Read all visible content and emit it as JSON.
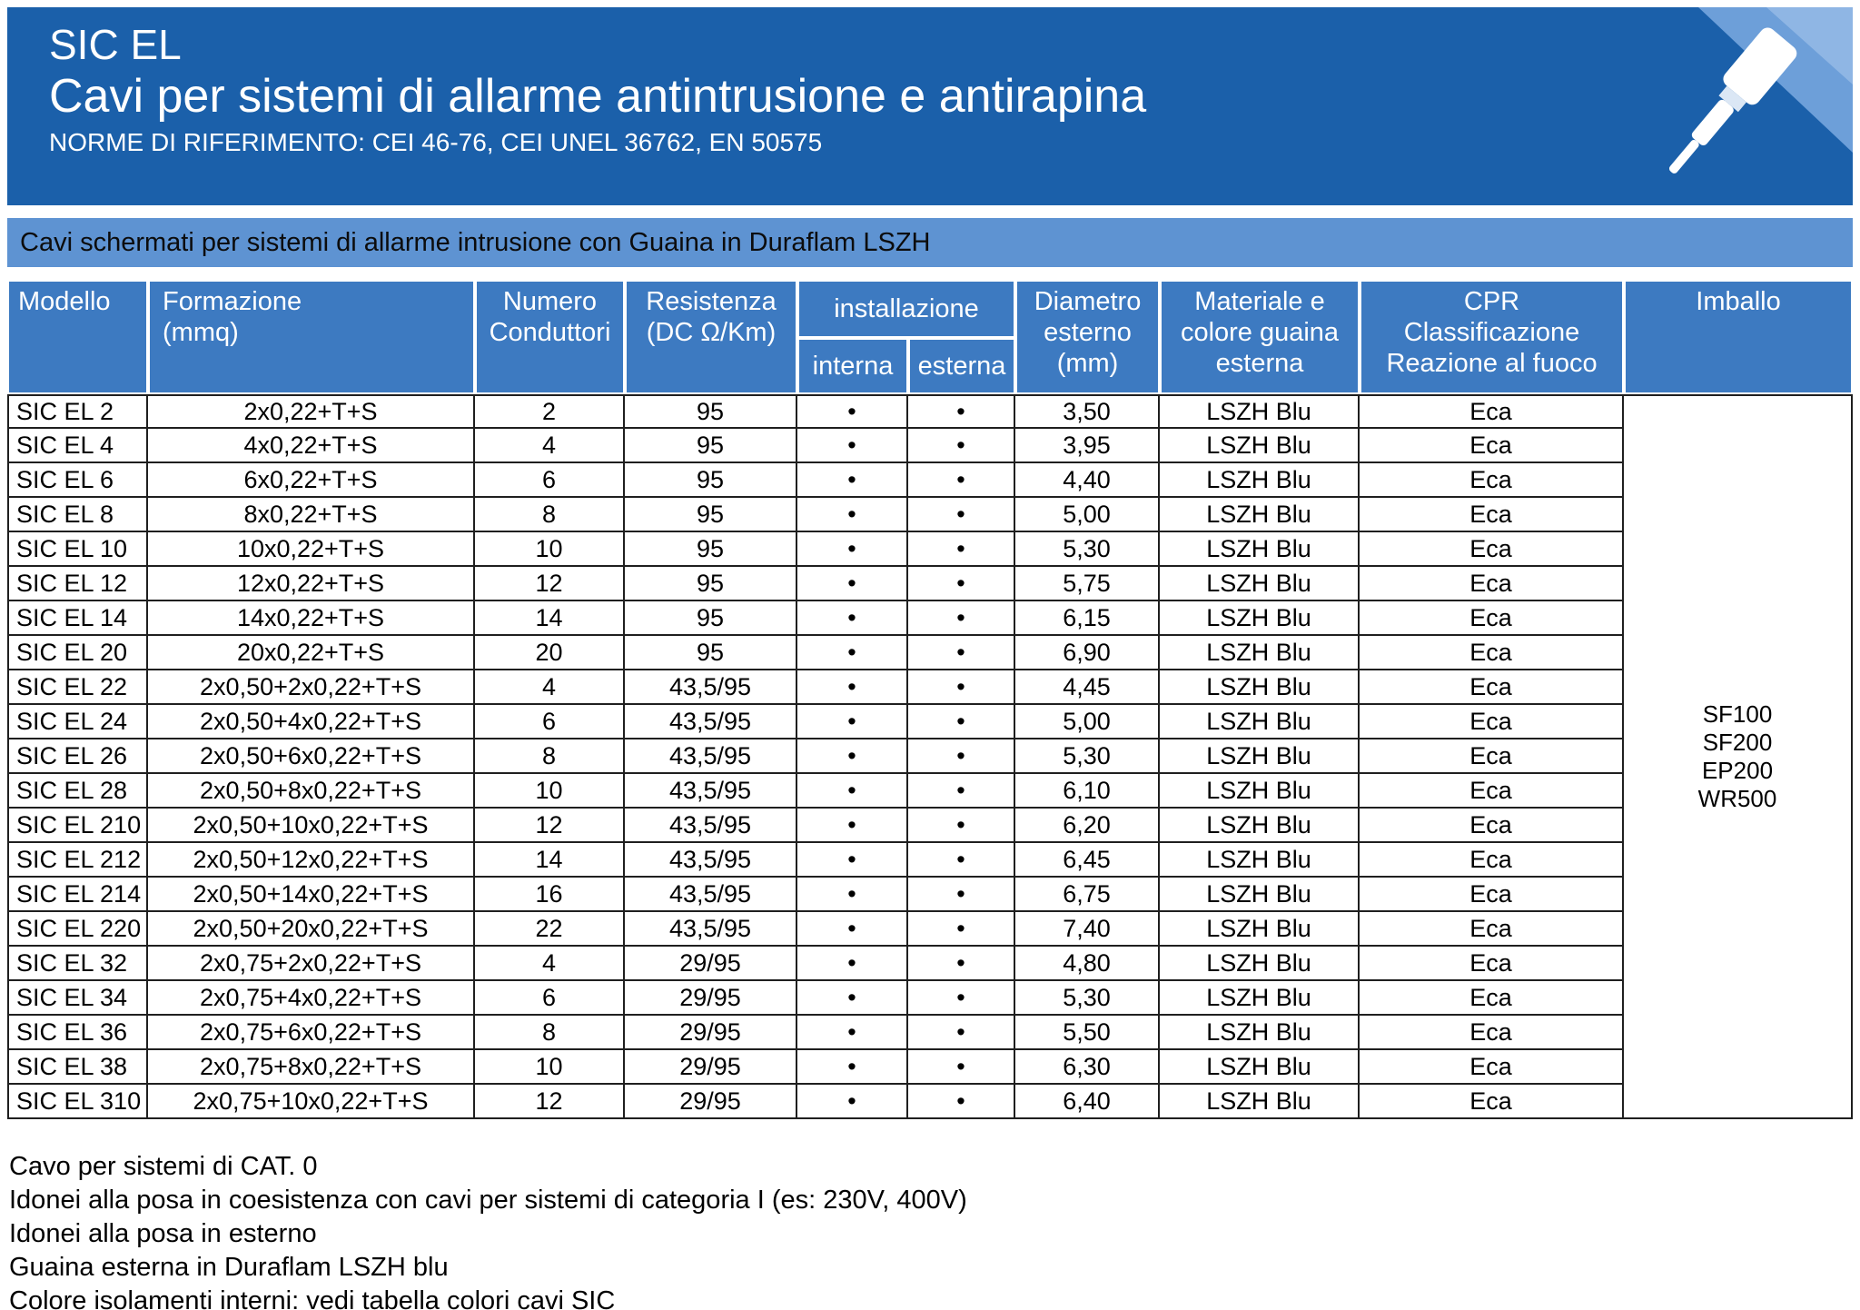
{
  "banner": {
    "title": "SIC EL",
    "subtitle": "Cavi per sistemi di allarme antintrusione e antirapina",
    "norms": "NORME DI RIFERIMENTO: CEI 46-76, CEI UNEL 36762, EN 50575"
  },
  "section": {
    "text": "Cavi schermati per sistemi di allarme intrusione con Guaina in Duraflam LSZH"
  },
  "colors": {
    "banner_blue": "#1b60aa",
    "band_blue": "#5e93d2",
    "header_cell_blue": "#3d7ac1",
    "art_light_blue": "#6d9fd9",
    "border_dark": "#1f1f1f"
  },
  "table": {
    "headers": {
      "modello": "Modello",
      "formazione": "Formazione\n(mmq)",
      "conduttori": "Numero\nConduttori",
      "resistenza": "Resistenza\n(DC Ω/Km)",
      "installazione": "installazione",
      "interna": "interna",
      "esterna": "esterna",
      "diametro": "Diametro\nesterno\n(mm)",
      "materiale": "Materiale e\ncolore guaina\nesterna",
      "cpr": "CPR\nClassificazione\nReazione al fuoco",
      "imballo": "Imballo"
    },
    "rows": [
      {
        "model": "SIC EL 2",
        "formation": "2x0,22+T+S",
        "conductors": "2",
        "resistance": "95",
        "interna": "•",
        "esterna": "•",
        "diameter": "3,50",
        "sheath": "LSZH Blu",
        "cpr_class": "Eca"
      },
      {
        "model": "SIC EL 4",
        "formation": "4x0,22+T+S",
        "conductors": "4",
        "resistance": "95",
        "interna": "•",
        "esterna": "•",
        "diameter": "3,95",
        "sheath": "LSZH Blu",
        "cpr_class": "Eca"
      },
      {
        "model": "SIC EL 6",
        "formation": "6x0,22+T+S",
        "conductors": "6",
        "resistance": "95",
        "interna": "•",
        "esterna": "•",
        "diameter": "4,40",
        "sheath": "LSZH Blu",
        "cpr_class": "Eca"
      },
      {
        "model": "SIC EL 8",
        "formation": "8x0,22+T+S",
        "conductors": "8",
        "resistance": "95",
        "interna": "•",
        "esterna": "•",
        "diameter": "5,00",
        "sheath": "LSZH Blu",
        "cpr_class": "Eca"
      },
      {
        "model": "SIC EL 10",
        "formation": "10x0,22+T+S",
        "conductors": "10",
        "resistance": "95",
        "interna": "•",
        "esterna": "•",
        "diameter": "5,30",
        "sheath": "LSZH Blu",
        "cpr_class": "Eca"
      },
      {
        "model": "SIC EL 12",
        "formation": "12x0,22+T+S",
        "conductors": "12",
        "resistance": "95",
        "interna": "•",
        "esterna": "•",
        "diameter": "5,75",
        "sheath": "LSZH Blu",
        "cpr_class": "Eca"
      },
      {
        "model": "SIC EL 14",
        "formation": "14x0,22+T+S",
        "conductors": "14",
        "resistance": "95",
        "interna": "•",
        "esterna": "•",
        "diameter": "6,15",
        "sheath": "LSZH Blu",
        "cpr_class": "Eca"
      },
      {
        "model": "SIC EL 20",
        "formation": "20x0,22+T+S",
        "conductors": "20",
        "resistance": "95",
        "interna": "•",
        "esterna": "•",
        "diameter": "6,90",
        "sheath": "LSZH Blu",
        "cpr_class": "Eca"
      },
      {
        "model": "SIC EL 22",
        "formation": "2x0,50+2x0,22+T+S",
        "conductors": "4",
        "resistance": "43,5/95",
        "interna": "•",
        "esterna": "•",
        "diameter": "4,45",
        "sheath": "LSZH Blu",
        "cpr_class": "Eca"
      },
      {
        "model": "SIC EL 24",
        "formation": "2x0,50+4x0,22+T+S",
        "conductors": "6",
        "resistance": "43,5/95",
        "interna": "•",
        "esterna": "•",
        "diameter": "5,00",
        "sheath": "LSZH Blu",
        "cpr_class": "Eca"
      },
      {
        "model": "SIC EL 26",
        "formation": "2x0,50+6x0,22+T+S",
        "conductors": "8",
        "resistance": "43,5/95",
        "interna": "•",
        "esterna": "•",
        "diameter": "5,30",
        "sheath": "LSZH Blu",
        "cpr_class": "Eca"
      },
      {
        "model": "SIC EL 28",
        "formation": "2x0,50+8x0,22+T+S",
        "conductors": "10",
        "resistance": "43,5/95",
        "interna": "•",
        "esterna": "•",
        "diameter": "6,10",
        "sheath": "LSZH Blu",
        "cpr_class": "Eca"
      },
      {
        "model": "SIC EL 210",
        "formation": "2x0,50+10x0,22+T+S",
        "conductors": "12",
        "resistance": "43,5/95",
        "interna": "•",
        "esterna": "•",
        "diameter": "6,20",
        "sheath": "LSZH Blu",
        "cpr_class": "Eca"
      },
      {
        "model": "SIC EL 212",
        "formation": "2x0,50+12x0,22+T+S",
        "conductors": "14",
        "resistance": "43,5/95",
        "interna": "•",
        "esterna": "•",
        "diameter": "6,45",
        "sheath": "LSZH Blu",
        "cpr_class": "Eca"
      },
      {
        "model": "SIC EL 214",
        "formation": "2x0,50+14x0,22+T+S",
        "conductors": "16",
        "resistance": "43,5/95",
        "interna": "•",
        "esterna": "•",
        "diameter": "6,75",
        "sheath": "LSZH Blu",
        "cpr_class": "Eca"
      },
      {
        "model": "SIC EL 220",
        "formation": "2x0,50+20x0,22+T+S",
        "conductors": "22",
        "resistance": "43,5/95",
        "interna": "•",
        "esterna": "•",
        "diameter": "7,40",
        "sheath": "LSZH Blu",
        "cpr_class": "Eca"
      },
      {
        "model": "SIC EL 32",
        "formation": "2x0,75+2x0,22+T+S",
        "conductors": "4",
        "resistance": "29/95",
        "interna": "•",
        "esterna": "•",
        "diameter": "4,80",
        "sheath": "LSZH Blu",
        "cpr_class": "Eca"
      },
      {
        "model": "SIC EL 34",
        "formation": "2x0,75+4x0,22+T+S",
        "conductors": "6",
        "resistance": "29/95",
        "interna": "•",
        "esterna": "•",
        "diameter": "5,30",
        "sheath": "LSZH Blu",
        "cpr_class": "Eca"
      },
      {
        "model": "SIC EL 36",
        "formation": "2x0,75+6x0,22+T+S",
        "conductors": "8",
        "resistance": "29/95",
        "interna": "•",
        "esterna": "•",
        "diameter": "5,50",
        "sheath": "LSZH Blu",
        "cpr_class": "Eca"
      },
      {
        "model": "SIC EL 38",
        "formation": "2x0,75+8x0,22+T+S",
        "conductors": "10",
        "resistance": "29/95",
        "interna": "•",
        "esterna": "•",
        "diameter": "6,30",
        "sheath": "LSZH Blu",
        "cpr_class": "Eca"
      },
      {
        "model": "SIC EL 310",
        "formation": "2x0,75+10x0,22+T+S",
        "conductors": "12",
        "resistance": "29/95",
        "interna": "•",
        "esterna": "•",
        "diameter": "6,40",
        "sheath": "LSZH Blu",
        "cpr_class": "Eca"
      }
    ],
    "imballo_codes": [
      "SF100",
      "SF200",
      "EP200",
      "WR500"
    ]
  },
  "footer": {
    "notes": [
      "Cavo per sistemi di CAT. 0",
      "Idonei alla posa in coesistenza con cavi per sistemi di categoria I (es: 230V, 400V)",
      "Idonei alla posa in esterno",
      "Guaina esterna in Duraflam LSZH blu",
      "Colore isolamenti interni: vedi tabella colori cavi SIC"
    ]
  }
}
